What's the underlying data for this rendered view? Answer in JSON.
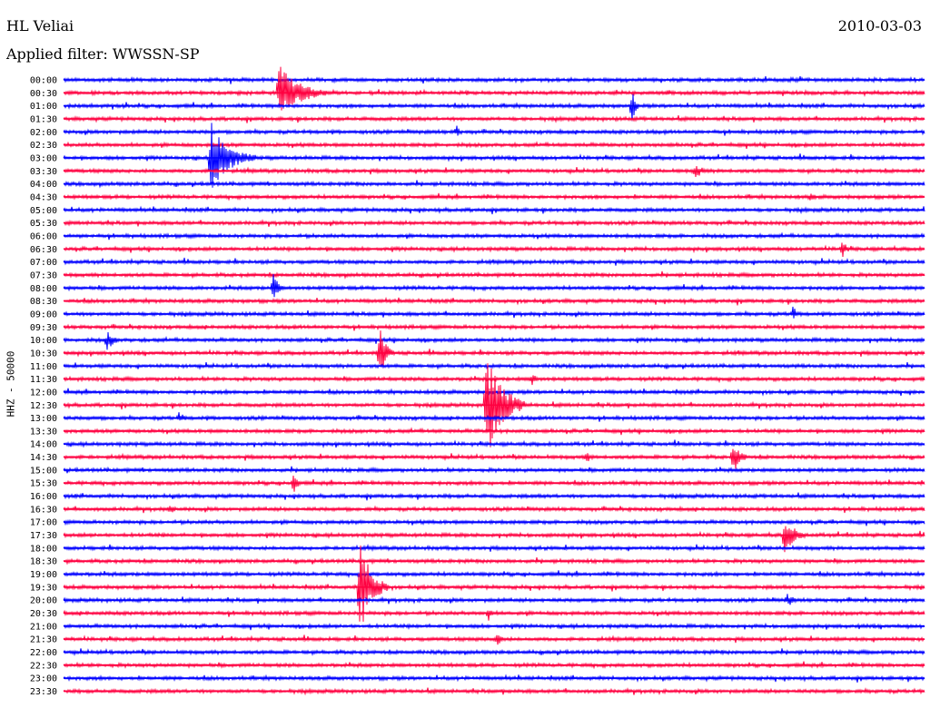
{
  "header": {
    "station": "HL Veliai",
    "date": "2010-03-03",
    "filter": "Applied filter: WWSSN-SP"
  },
  "chart_data": {
    "type": "line",
    "title": "HL Veliai",
    "ylabel": "HHZ - 50000",
    "row_labels": [
      "00:00",
      "00:30",
      "01:00",
      "01:30",
      "02:00",
      "02:30",
      "03:00",
      "03:30",
      "04:00",
      "04:30",
      "05:00",
      "05:30",
      "06:00",
      "06:30",
      "07:00",
      "07:30",
      "08:00",
      "08:30",
      "09:00",
      "09:30",
      "10:00",
      "10:30",
      "11:00",
      "11:30",
      "12:00",
      "12:30",
      "13:00",
      "13:30",
      "14:00",
      "14:30",
      "15:00",
      "15:30",
      "16:00",
      "16:30",
      "17:00",
      "17:30",
      "18:00",
      "18:30",
      "19:00",
      "19:30",
      "20:00",
      "20:30",
      "21:00",
      "21:30",
      "22:00",
      "22:30",
      "23:00",
      "23:30"
    ],
    "minutes_per_row": 30,
    "colors": [
      "#0000ff",
      "#ff0040"
    ],
    "grid": false,
    "events": [
      {
        "row": 1,
        "minute": 7.5,
        "amp": 2.2,
        "dur": 1.8
      },
      {
        "row": 2,
        "minute": 19.8,
        "amp": 1.4,
        "dur": 0.3
      },
      {
        "row": 4,
        "minute": 13.7,
        "amp": 0.6,
        "dur": 0.2
      },
      {
        "row": 6,
        "minute": 5.1,
        "amp": 3.0,
        "dur": 1.6
      },
      {
        "row": 7,
        "minute": 22.0,
        "amp": 0.7,
        "dur": 0.6
      },
      {
        "row": 9,
        "minute": 26.0,
        "amp": 0.4,
        "dur": 0.5
      },
      {
        "row": 13,
        "minute": 27.1,
        "amp": 0.9,
        "dur": 0.4
      },
      {
        "row": 16,
        "minute": 7.3,
        "amp": 1.3,
        "dur": 0.4
      },
      {
        "row": 18,
        "minute": 25.4,
        "amp": 0.8,
        "dur": 0.3
      },
      {
        "row": 20,
        "minute": 1.5,
        "amp": 0.9,
        "dur": 0.6
      },
      {
        "row": 21,
        "minute": 11.0,
        "amp": 2.5,
        "dur": 0.5
      },
      {
        "row": 23,
        "minute": 16.3,
        "amp": 0.7,
        "dur": 0.4
      },
      {
        "row": 25,
        "minute": 14.7,
        "amp": 4.5,
        "dur": 1.4
      },
      {
        "row": 26,
        "minute": 4.0,
        "amp": 0.5,
        "dur": 0.6
      },
      {
        "row": 29,
        "minute": 18.2,
        "amp": 0.6,
        "dur": 0.4
      },
      {
        "row": 29,
        "minute": 23.3,
        "amp": 1.5,
        "dur": 0.6
      },
      {
        "row": 31,
        "minute": 8.0,
        "amp": 1.1,
        "dur": 0.3
      },
      {
        "row": 33,
        "minute": 3.7,
        "amp": 0.7,
        "dur": 0.3
      },
      {
        "row": 35,
        "minute": 25.1,
        "amp": 1.8,
        "dur": 0.8
      },
      {
        "row": 39,
        "minute": 10.3,
        "amp": 4.0,
        "dur": 1.0
      },
      {
        "row": 40,
        "minute": 25.2,
        "amp": 0.6,
        "dur": 0.6
      },
      {
        "row": 41,
        "minute": 14.8,
        "amp": 0.7,
        "dur": 0.3
      },
      {
        "row": 43,
        "minute": 15.1,
        "amp": 1.3,
        "dur": 0.3
      }
    ]
  }
}
